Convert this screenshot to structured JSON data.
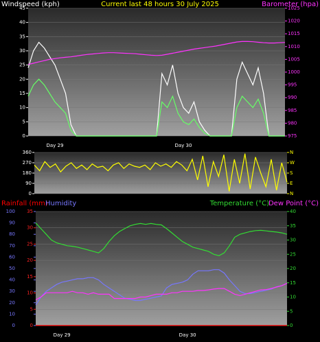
{
  "chart_data": [
    {
      "type": "line",
      "title": "Current last 48 hours 30 July 2025",
      "categories": [
        null,
        null,
        null,
        null,
        null,
        "Day 29",
        null,
        null,
        null,
        null,
        null,
        null,
        null,
        null,
        null,
        null,
        null,
        null,
        null,
        null,
        null,
        null,
        null,
        null,
        null,
        null,
        null,
        null,
        null,
        "Day 30",
        null,
        null,
        null,
        null,
        null,
        null,
        null,
        null,
        null,
        null,
        null,
        null,
        null,
        null,
        null,
        null,
        null,
        null,
        null
      ],
      "ylim": [
        0,
        45
      ],
      "yticks": [
        0,
        5,
        10,
        15,
        20,
        25,
        30,
        35,
        40,
        45
      ],
      "y2lim": [
        975,
        1025
      ],
      "y2ticks": [
        975,
        980,
        985,
        990,
        995,
        1000,
        1005,
        1010,
        1015,
        1020,
        1025
      ],
      "grid": true,
      "tick_colors": {
        "y": "#ffffff",
        "y2": "#ff33ff"
      },
      "series": [
        {
          "name": "Windspeed (kph)",
          "color": "#ffffff",
          "values": [
            24,
            30,
            33,
            31,
            28,
            25,
            20,
            15,
            4,
            0,
            0,
            0,
            0,
            0,
            0,
            0,
            0,
            0,
            0,
            0,
            0,
            0,
            0,
            0,
            0,
            22,
            18,
            25,
            15,
            10,
            8,
            12,
            5,
            2,
            0,
            0,
            0,
            0,
            0,
            20,
            26,
            22,
            18,
            24,
            15,
            0,
            0,
            0,
            0
          ]
        },
        {
          "color": "#66ff66",
          "values": [
            14,
            18,
            20,
            18,
            15,
            12,
            10,
            8,
            2,
            0,
            0,
            0,
            0,
            0,
            0,
            0,
            0,
            0,
            0,
            0,
            0,
            0,
            0,
            0,
            0,
            12,
            10,
            14,
            8,
            5,
            4,
            6,
            3,
            1,
            0,
            0,
            0,
            0,
            0,
            10,
            14,
            12,
            10,
            13,
            8,
            0,
            0,
            0,
            0
          ]
        },
        {
          "name": "Barometer (hpa)",
          "color": "#ff33ff",
          "axis": "y2",
          "values": [
            1003,
            1003.5,
            1004,
            1004.5,
            1005,
            1005.3,
            1005.6,
            1005.8,
            1006,
            1006.3,
            1006.6,
            1006.9,
            1007.1,
            1007.3,
            1007.5,
            1007.6,
            1007.6,
            1007.5,
            1007.4,
            1007.3,
            1007.2,
            1007,
            1006.8,
            1006.6,
            1006.5,
            1006.6,
            1007,
            1007.4,
            1007.8,
            1008.2,
            1008.6,
            1009,
            1009.3,
            1009.6,
            1009.9,
            1010.2,
            1010.6,
            1011,
            1011.4,
            1011.8,
            1012,
            1012,
            1011.9,
            1011.7,
            1011.5,
            1011.4,
            1011.4,
            1011.5,
            1011.6
          ]
        }
      ]
    },
    {
      "type": "line",
      "ylim": [
        0,
        360
      ],
      "yticks": [
        0,
        90,
        180,
        270,
        360
      ],
      "y2lim": [
        0,
        360
      ],
      "y2ticks": [
        {
          "value": 0,
          "label": "N"
        },
        {
          "value": 90,
          "label": "E"
        },
        {
          "value": 180,
          "label": "S"
        },
        {
          "value": 270,
          "label": "W"
        },
        {
          "value": 360,
          "label": "N"
        }
      ],
      "grid": true,
      "tick_colors": {
        "y": "#ffffff",
        "y2": "#ffff00"
      },
      "series": [
        {
          "color": "#ffff00",
          "values": [
            250,
            200,
            280,
            230,
            260,
            190,
            240,
            270,
            220,
            250,
            210,
            260,
            230,
            240,
            200,
            250,
            270,
            220,
            260,
            240,
            230,
            250,
            210,
            270,
            240,
            260,
            230,
            280,
            250,
            200,
            300,
            120,
            330,
            60,
            280,
            150,
            340,
            20,
            300,
            90,
            350,
            40,
            320,
            180,
            60,
            300,
            30,
            270,
            100
          ]
        }
      ]
    },
    {
      "type": "line",
      "categories": [
        null,
        null,
        null,
        null,
        null,
        "Day 29",
        null,
        null,
        null,
        null,
        null,
        null,
        null,
        null,
        null,
        null,
        null,
        null,
        null,
        null,
        null,
        null,
        null,
        null,
        null,
        null,
        null,
        null,
        null,
        "Day 30",
        null,
        null,
        null,
        null,
        null,
        null,
        null,
        null,
        null,
        null,
        null,
        null,
        null,
        null,
        null,
        null,
        null,
        null,
        null
      ],
      "ylim": [
        0,
        35
      ],
      "yticks": [
        0,
        5,
        10,
        15,
        20,
        25,
        30,
        35
      ],
      "y3lim": [
        0,
        100
      ],
      "y3ticks": [
        0,
        10,
        20,
        30,
        40,
        50,
        60,
        70,
        80,
        90,
        100
      ],
      "y2lim": [
        0,
        40
      ],
      "y2ticks": [
        0,
        5,
        10,
        15,
        20,
        25,
        30,
        35,
        40
      ],
      "grid": true,
      "tick_colors": {
        "y": "#ff2222",
        "y3": "#7777ff",
        "y2": "#33dd33"
      },
      "series": [
        {
          "name": "Rainfall (mm)",
          "color": "#ff0000",
          "values": [
            0,
            0,
            0,
            0,
            0,
            0,
            0,
            0,
            0,
            0,
            0,
            0,
            0,
            0,
            0,
            0,
            0,
            0,
            0,
            0,
            0,
            0,
            0,
            0,
            0,
            0,
            0,
            0,
            0,
            0,
            0,
            0,
            0,
            0,
            0,
            0,
            0,
            0,
            0,
            0,
            0,
            0,
            0,
            0,
            0,
            0,
            0,
            0,
            0
          ]
        },
        {
          "name": "Humidity",
          "color": "#7777ff",
          "axis": "y3",
          "values": [
            18,
            25,
            30,
            33,
            36,
            38,
            39,
            40,
            41,
            41,
            42,
            42,
            40,
            36,
            33,
            30,
            27,
            24,
            23,
            22,
            22,
            23,
            24,
            25,
            26,
            33,
            36,
            37,
            38,
            40,
            45,
            48,
            48,
            48,
            49,
            49,
            46,
            40,
            35,
            30,
            28,
            28,
            29,
            30,
            31,
            32,
            34,
            35,
            37
          ]
        },
        {
          "name": "Temperature (°C)",
          "color": "#33dd33",
          "axis": "y2",
          "values": [
            36,
            34,
            32,
            30,
            29,
            28.5,
            28,
            27.8,
            27.5,
            27,
            26.5,
            26,
            25.5,
            27,
            29.5,
            31.5,
            33,
            34,
            35,
            35.5,
            35.8,
            35.5,
            35.8,
            35.5,
            35.3,
            34,
            32.5,
            31,
            29.5,
            28.5,
            27.5,
            27,
            26.5,
            26,
            25,
            24.5,
            25.5,
            28,
            31,
            32,
            32.5,
            33,
            33.3,
            33.4,
            33.2,
            33,
            32.8,
            32.5,
            32
          ]
        },
        {
          "name": "Dew Point (°C)",
          "color": "#ff33ff",
          "axis": "y2",
          "values": [
            9,
            10,
            11.5,
            11.5,
            11.5,
            11.5,
            11.5,
            12,
            11.5,
            11.5,
            11,
            11.5,
            11,
            11,
            11,
            9.5,
            9.5,
            9.5,
            9.5,
            9.5,
            10,
            10,
            10.5,
            11,
            11,
            11,
            11.5,
            11.5,
            12,
            12,
            12,
            12.3,
            12.3,
            12.5,
            12.8,
            13,
            13,
            12,
            11,
            10.5,
            11,
            11.5,
            12,
            12.5,
            12.6,
            13,
            13.5,
            14,
            14.8
          ]
        }
      ]
    }
  ]
}
